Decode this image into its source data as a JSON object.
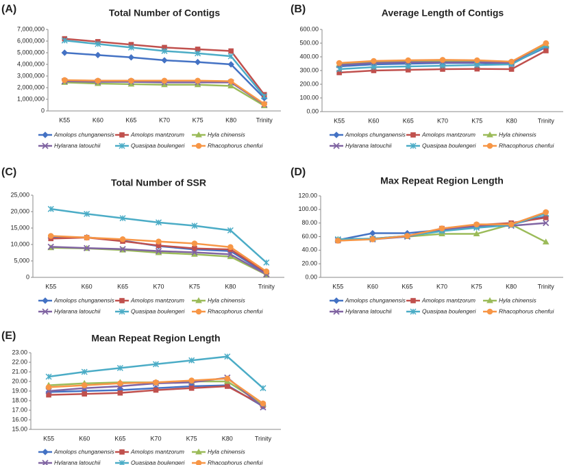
{
  "chart_data": [
    {
      "type": "line",
      "label": "(A)",
      "title": "Total Number of Contigs",
      "categories": [
        "K55",
        "K60",
        "K65",
        "K70",
        "K75",
        "K80",
        "Trinity"
      ],
      "ylim": [
        0,
        7000000
      ],
      "yticks": [
        0,
        {
          "value": 1000000,
          "label": "1,000,000"
        },
        {
          "value": 2000000,
          "label": "2,000,000"
        },
        {
          "value": 3000000,
          "label": "3,000,000"
        },
        {
          "value": 4000000,
          "label": "4,000,000"
        },
        {
          "value": 5000000,
          "label": "5,000,000"
        },
        {
          "value": 6000000,
          "label": "6,000,000"
        },
        {
          "value": 7000000,
          "label": "7,000,000"
        }
      ],
      "series": [
        {
          "name": "Amolops chunganensis",
          "color": "#4472c4",
          "marker": "diamond",
          "values": [
            5000000,
            4800000,
            4600000,
            4350000,
            4200000,
            4000000,
            1100000
          ]
        },
        {
          "name": "Amolops mantzorum",
          "color": "#c0504d",
          "marker": "square",
          "values": [
            6200000,
            5950000,
            5700000,
            5450000,
            5300000,
            5150000,
            1400000
          ]
        },
        {
          "name": "Hyla chinensis",
          "color": "#9bbb59",
          "marker": "triangle",
          "values": [
            2450000,
            2350000,
            2300000,
            2250000,
            2250000,
            2150000,
            450000
          ]
        },
        {
          "name": "Hylarana latouchii",
          "color": "#8064a2",
          "marker": "cross",
          "values": [
            2550000,
            2500000,
            2500000,
            2450000,
            2450000,
            2450000,
            550000
          ]
        },
        {
          "name": "Quasipaa boulengeri",
          "color": "#4bacc6",
          "marker": "star",
          "values": [
            6050000,
            5750000,
            5450000,
            5150000,
            4950000,
            4700000,
            1250000
          ]
        },
        {
          "name": "Rhacophorus chenfui",
          "color": "#f79646",
          "marker": "circle",
          "values": [
            2650000,
            2600000,
            2600000,
            2600000,
            2600000,
            2550000,
            600000
          ]
        }
      ]
    },
    {
      "type": "line",
      "label": "(B)",
      "title": "Average Length of Contigs",
      "categories": [
        "K55",
        "K60",
        "K65",
        "K70",
        "K75",
        "K80",
        "Trinity"
      ],
      "ylim": [
        0,
        600
      ],
      "yticks": [
        {
          "value": 0,
          "label": "0.00"
        },
        {
          "value": 100,
          "label": "100.00"
        },
        {
          "value": 200,
          "label": "200.00"
        },
        {
          "value": 300,
          "label": "300.00"
        },
        {
          "value": 400,
          "label": "400.00"
        },
        {
          "value": 500,
          "label": "500.00"
        },
        {
          "value": 600,
          "label": "600.00"
        }
      ],
      "series": [
        {
          "name": "Amolops chunganensis",
          "color": "#4472c4",
          "marker": "diamond",
          "values": [
            330,
            345,
            350,
            355,
            355,
            350,
            470
          ]
        },
        {
          "name": "Amolops mantzorum",
          "color": "#c0504d",
          "marker": "square",
          "values": [
            285,
            300,
            305,
            310,
            312,
            310,
            445
          ]
        },
        {
          "name": "Hyla chinensis",
          "color": "#9bbb59",
          "marker": "triangle",
          "values": [
            345,
            360,
            365,
            370,
            368,
            360,
            490
          ]
        },
        {
          "name": "Hylarana latouchii",
          "color": "#8064a2",
          "marker": "cross",
          "values": [
            340,
            355,
            360,
            360,
            360,
            355,
            480
          ]
        },
        {
          "name": "Quasipaa boulengeri",
          "color": "#4bacc6",
          "marker": "star",
          "values": [
            310,
            325,
            330,
            335,
            340,
            345,
            480
          ]
        },
        {
          "name": "Rhacophorus chenfui",
          "color": "#f79646",
          "marker": "circle",
          "values": [
            355,
            370,
            375,
            378,
            375,
            365,
            500
          ]
        }
      ]
    },
    {
      "type": "line",
      "label": "(C)",
      "title": "Total Number of SSR",
      "categories": [
        "K55",
        "K60",
        "K65",
        "K70",
        "K75",
        "K80",
        "Trinity"
      ],
      "ylim": [
        0,
        25000
      ],
      "yticks": [
        0,
        {
          "value": 5000,
          "label": "5,000"
        },
        {
          "value": 10000,
          "label": "10,000"
        },
        {
          "value": 15000,
          "label": "15,000"
        },
        {
          "value": 20000,
          "label": "20,000"
        },
        {
          "value": 25000,
          "label": "25,000"
        }
      ],
      "series": [
        {
          "name": "Amolops chunganensis",
          "color": "#4472c4",
          "marker": "diamond",
          "values": [
            12000,
            12200,
            11200,
            9500,
            8500,
            8000,
            1200
          ]
        },
        {
          "name": "Amolops mantzorum",
          "color": "#c0504d",
          "marker": "square",
          "values": [
            11800,
            12100,
            11000,
            9700,
            8800,
            8500,
            1500
          ]
        },
        {
          "name": "Hyla chinensis",
          "color": "#9bbb59",
          "marker": "triangle",
          "values": [
            9000,
            8800,
            8300,
            7500,
            7000,
            6300,
            800
          ]
        },
        {
          "name": "Hylarana latouchii",
          "color": "#8064a2",
          "marker": "cross",
          "values": [
            9300,
            8900,
            8600,
            8000,
            7600,
            7000,
            900
          ]
        },
        {
          "name": "Quasipaa boulengeri",
          "color": "#4bacc6",
          "marker": "star",
          "values": [
            20800,
            19300,
            18000,
            16700,
            15700,
            14300,
            4500
          ]
        },
        {
          "name": "Rhacophorus chenfui",
          "color": "#f79646",
          "marker": "circle",
          "values": [
            12600,
            12100,
            11600,
            10900,
            10300,
            9200,
            1800
          ]
        }
      ]
    },
    {
      "type": "line",
      "label": "(D)",
      "title": "Max Repeat Region Length",
      "categories": [
        "K55",
        "K60",
        "K65",
        "K70",
        "K75",
        "K80",
        "Trinity"
      ],
      "ylim": [
        0,
        120
      ],
      "yticks": [
        {
          "value": 0,
          "label": "0.00"
        },
        {
          "value": 20,
          "label": "20.00"
        },
        {
          "value": 40,
          "label": "40.00"
        },
        {
          "value": 60,
          "label": "60.00"
        },
        {
          "value": 80,
          "label": "80.00"
        },
        {
          "value": 100,
          "label": "100.00"
        },
        {
          "value": 120,
          "label": "120.00"
        }
      ],
      "series": [
        {
          "name": "Amolops chunganensis",
          "color": "#4472c4",
          "marker": "diamond",
          "values": [
            55,
            65,
            65,
            70,
            75,
            78,
            90
          ]
        },
        {
          "name": "Amolops mantzorum",
          "color": "#c0504d",
          "marker": "square",
          "values": [
            54,
            57,
            61,
            72,
            77,
            80,
            88
          ]
        },
        {
          "name": "Hyla chinensis",
          "color": "#9bbb59",
          "marker": "triangle",
          "values": [
            56,
            57,
            60,
            64,
            64,
            78,
            52
          ]
        },
        {
          "name": "Hylarana latouchii",
          "color": "#8064a2",
          "marker": "cross",
          "values": [
            55,
            56,
            60,
            70,
            75,
            76,
            80
          ]
        },
        {
          "name": "Quasipaa boulengeri",
          "color": "#4bacc6",
          "marker": "star",
          "values": [
            56,
            57,
            61,
            68,
            73,
            77,
            94
          ]
        },
        {
          "name": "Rhacophorus chenfui",
          "color": "#f79646",
          "marker": "circle",
          "values": [
            54,
            56,
            61,
            72,
            78,
            78,
            96
          ]
        }
      ]
    },
    {
      "type": "line",
      "label": "(E)",
      "title": "Mean Repeat Region Length",
      "categories": [
        "K55",
        "K60",
        "K65",
        "K70",
        "K75",
        "K80",
        "Trinity"
      ],
      "ylim": [
        15,
        23
      ],
      "yticks": [
        {
          "value": 15,
          "label": "15.00"
        },
        {
          "value": 16,
          "label": "16.00"
        },
        {
          "value": 17,
          "label": "17.00"
        },
        {
          "value": 18,
          "label": "18.00"
        },
        {
          "value": 19,
          "label": "19.00"
        },
        {
          "value": 20,
          "label": "20.00"
        },
        {
          "value": 21,
          "label": "21.00"
        },
        {
          "value": 22,
          "label": "22.00"
        },
        {
          "value": 23,
          "label": "23.00"
        }
      ],
      "series": [
        {
          "name": "Amolops chunganensis",
          "color": "#4472c4",
          "marker": "diamond",
          "values": [
            18.9,
            19.0,
            19.1,
            19.3,
            19.5,
            19.6,
            17.4
          ]
        },
        {
          "name": "Amolops mantzorum",
          "color": "#c0504d",
          "marker": "square",
          "values": [
            18.6,
            18.7,
            18.8,
            19.1,
            19.3,
            19.5,
            17.5
          ]
        },
        {
          "name": "Hyla chinensis",
          "color": "#9bbb59",
          "marker": "triangle",
          "values": [
            19.6,
            19.8,
            19.9,
            19.9,
            20.0,
            20.0,
            17.6
          ]
        },
        {
          "name": "Hylarana latouchii",
          "color": "#8064a2",
          "marker": "cross",
          "values": [
            19.0,
            19.3,
            19.5,
            19.8,
            19.9,
            20.4,
            17.3
          ]
        },
        {
          "name": "Quasipaa boulengeri",
          "color": "#4bacc6",
          "marker": "star",
          "values": [
            20.5,
            21.0,
            21.4,
            21.8,
            22.2,
            22.6,
            19.3
          ]
        },
        {
          "name": "Rhacophorus chenfui",
          "color": "#f79646",
          "marker": "circle",
          "values": [
            19.4,
            19.6,
            19.8,
            19.9,
            20.1,
            20.3,
            17.7
          ]
        }
      ]
    }
  ]
}
